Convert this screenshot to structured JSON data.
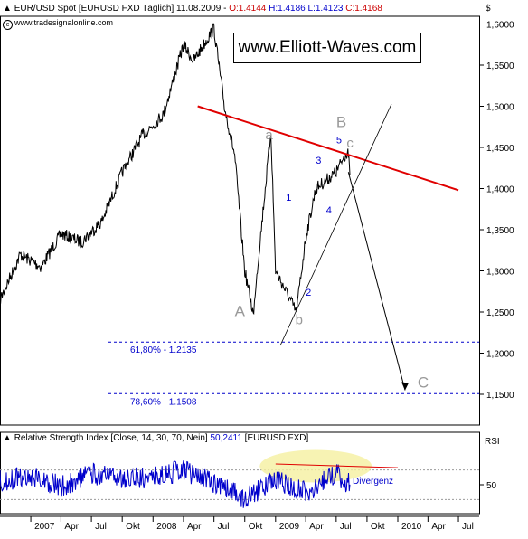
{
  "header": {
    "symbol": "EUR/USD Spot [EURUSD FXD  Täglich]",
    "date": "11.08.2009",
    "open": "O:1.4144",
    "high": "H:1.4186",
    "low": "L:1.4123",
    "close": "C:1.4168",
    "credit": "www.tradesignalonline.com",
    "brand": "www.Elliott-Waves.com",
    "currency_label": "$"
  },
  "rsi": {
    "title": "Relative Strength Index [Close, 14, 30, 70, Nein]",
    "value": "50,2411",
    "symbol": "[EURUSD FXD]",
    "axis_label": "RSI",
    "tick": "50",
    "divergence_label": "Divergenz"
  },
  "colors": {
    "price": "#000000",
    "resistance": "#e00000",
    "rsi": "#0000cc",
    "highlight": "#f5f0a0",
    "fib": "#0000cc",
    "grid": "#bbbbbb",
    "wave_grey": "#999999",
    "wave_blue": "#0000cc"
  },
  "chart_data": [
    {
      "type": "line",
      "ylim": [
        1.2,
        1.6
      ],
      "y_ticks": [
        "1,6000",
        "1,5500",
        "1,5000",
        "1,4500",
        "1,4000",
        "1,3500",
        "1,3000",
        "1,2500",
        "1,2000",
        "1,1500"
      ],
      "x_tick_labels": [
        "2007",
        "Apr",
        "Jul",
        "Okt",
        "2008",
        "Apr",
        "Jul",
        "Okt",
        "2009",
        "Apr",
        "Jul",
        "Okt",
        "2010",
        "Apr",
        "Jul"
      ],
      "series": [
        {
          "values": [
            [
              "2006-10",
              1.265
            ],
            [
              "2006-12",
              1.32
            ],
            [
              "2007-02",
              1.305
            ],
            [
              "2007-04",
              1.345
            ],
            [
              "2007-06",
              1.335
            ],
            [
              "2007-08",
              1.36
            ],
            [
              "2007-10",
              1.42
            ],
            [
              "2007-12",
              1.465
            ],
            [
              "2008-02",
              1.49
            ],
            [
              "2008-04",
              1.575
            ],
            [
              "2008-05",
              1.555
            ],
            [
              "2008-07",
              1.595
            ],
            [
              "2008-08",
              1.5
            ],
            [
              "2008-09",
              1.44
            ],
            [
              "2008-10",
              1.3
            ],
            [
              "2008-10-28",
              1.245
            ],
            [
              "2008-11",
              1.275
            ],
            [
              "2008-12-18",
              1.47
            ],
            [
              "2009-01",
              1.3
            ],
            [
              "2009-03-04",
              1.25
            ],
            [
              "2009-04",
              1.34
            ],
            [
              "2009-05",
              1.4
            ],
            [
              "2009-06",
              1.41
            ],
            [
              "2009-07",
              1.42
            ],
            [
              "2009-08-05",
              1.447
            ],
            [
              "2009-08-11",
              1.4168
            ]
          ]
        }
      ],
      "fib_levels": [
        {
          "label": "61,80% - 1.2135",
          "value": 1.2135
        },
        {
          "label": "78,60% - 1.1508",
          "value": 1.1508
        }
      ],
      "resistance_line": [
        [
          "2008-07",
          1.5
        ],
        [
          "2010-07",
          1.398
        ]
      ],
      "wave_labels": [
        {
          "text": "A",
          "x": "2008-09",
          "y": 1.245,
          "color": "grey"
        },
        {
          "text": "a",
          "x": "2008-12",
          "y": 1.46,
          "color": "grey"
        },
        {
          "text": "b",
          "x": "2009-03",
          "y": 1.235,
          "color": "grey"
        },
        {
          "text": "B",
          "x": "2009-07",
          "y": 1.475,
          "color": "grey"
        },
        {
          "text": "c",
          "x": "2009-08",
          "y": 1.45,
          "color": "grey"
        },
        {
          "text": "C",
          "x": "2010-03",
          "y": 1.158,
          "color": "grey"
        },
        {
          "text": "1",
          "x": "2009-02",
          "y": 1.385,
          "color": "blue"
        },
        {
          "text": "2",
          "x": "2009-04",
          "y": 1.27,
          "color": "blue"
        },
        {
          "text": "3",
          "x": "2009-05",
          "y": 1.43,
          "color": "blue"
        },
        {
          "text": "4",
          "x": "2009-06",
          "y": 1.37,
          "color": "blue"
        },
        {
          "text": "5",
          "x": "2009-07",
          "y": 1.455,
          "color": "blue"
        }
      ],
      "projection": [
        [
          "2009-08",
          1.42
        ],
        [
          "2010-02",
          1.155
        ]
      ]
    },
    {
      "type": "line",
      "ylim": [
        0,
        100
      ],
      "reference_levels": [
        30,
        70
      ],
      "series": [
        {
          "values": [
            [
              "2006-10",
              55
            ],
            [
              "2007-01",
              62
            ],
            [
              "2007-04",
              48
            ],
            [
              "2007-07",
              65
            ],
            [
              "2007-10",
              58
            ],
            [
              "2008-01",
              60
            ],
            [
              "2008-04",
              70
            ],
            [
              "2008-07",
              52
            ],
            [
              "2008-10",
              32
            ],
            [
              "2009-01",
              55
            ],
            [
              "2009-04",
              40
            ],
            [
              "2009-07",
              65
            ],
            [
              "2009-08-11",
              50.24
            ]
          ]
        }
      ],
      "divergence_line": [
        [
          "2009-01",
          78
        ],
        [
          "2010-01",
          73
        ]
      ]
    }
  ]
}
